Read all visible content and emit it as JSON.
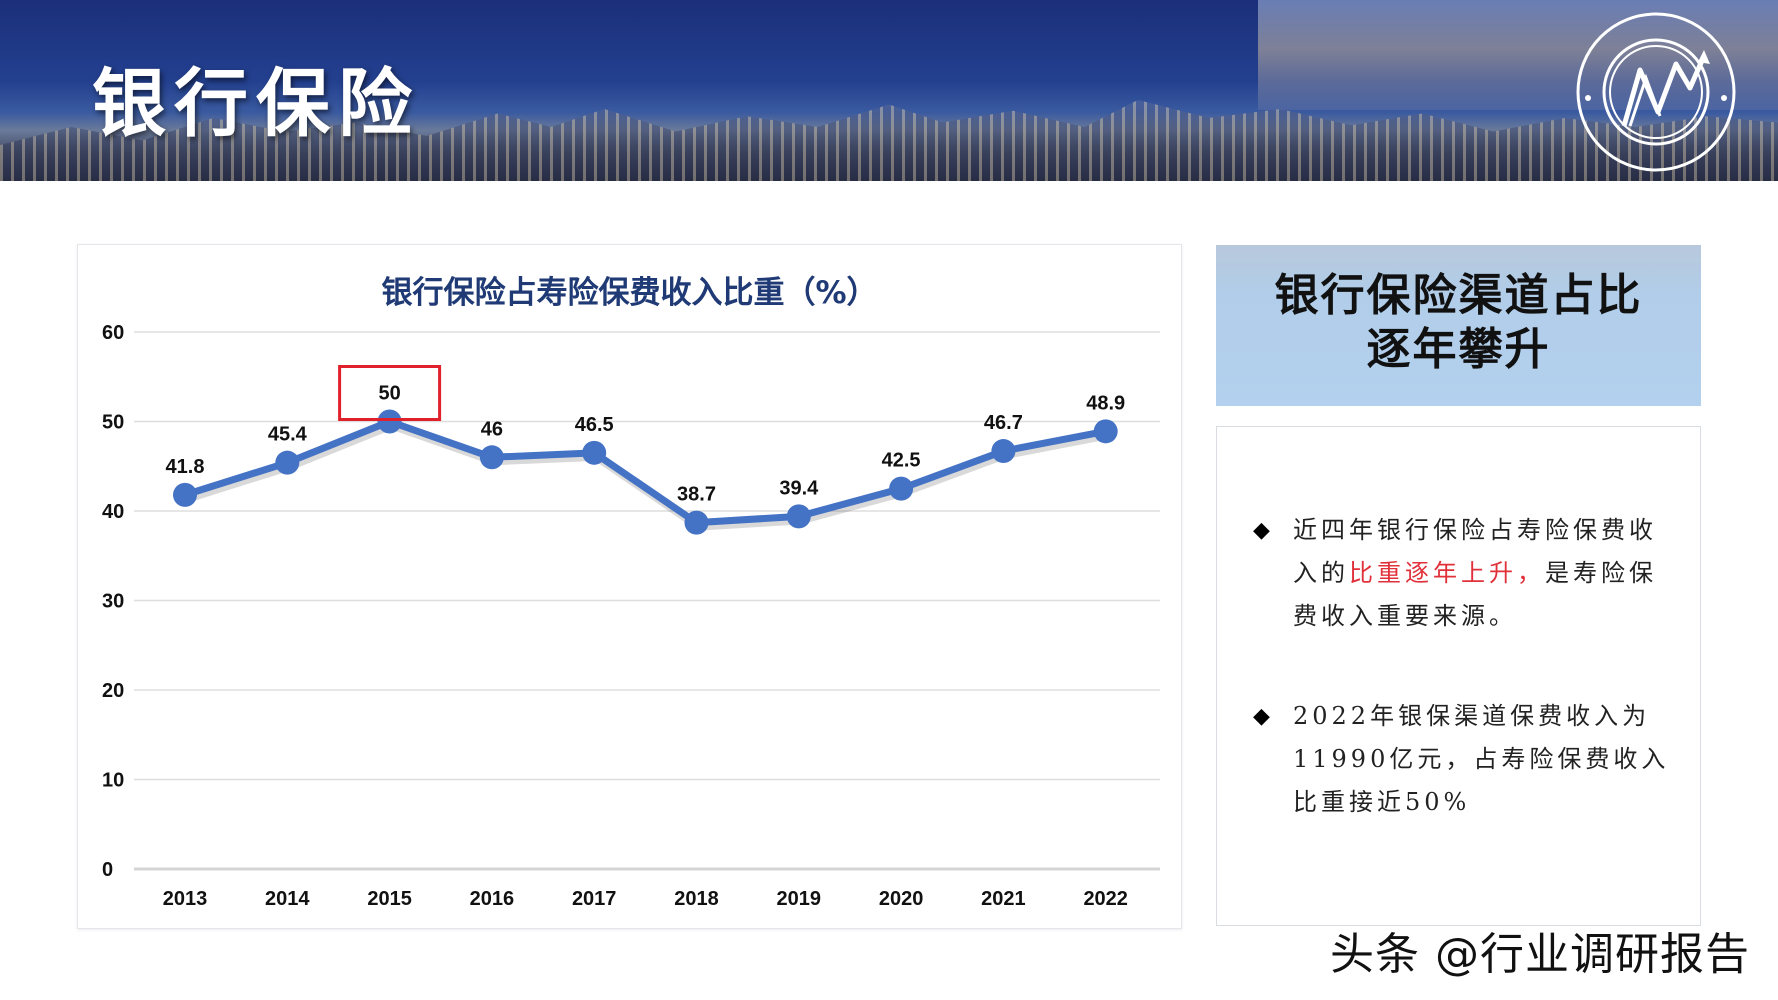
{
  "header": {
    "title": "银行保险",
    "logo_icon": "research-center-seal-logo"
  },
  "chart_panel": {
    "title": "银行保险占寿险保费收入比重（%）"
  },
  "side_panel": {
    "heading_line1": "银行保险渠道占比",
    "heading_line2": "逐年攀升",
    "bullets": [
      {
        "icon": "diamond-bullet",
        "text_before": "近四年银行保险占寿险保费收入的",
        "text_highlight": "比重逐年上升，",
        "text_after": "是寿险保费收入重要来源。"
      },
      {
        "icon": "diamond-bullet",
        "text_before": "2022年银保渠道保费收入为11990亿元，占寿险保费收入比重接近50%",
        "text_highlight": "",
        "text_after": ""
      }
    ]
  },
  "watermark": "头条 @行业调研报告",
  "colors": {
    "line": "#4472c4",
    "highlight_box": "#e0202a",
    "chart_title": "#1f3a75",
    "highlight_text": "#e0303a"
  },
  "chart_data": {
    "type": "line",
    "title": "银行保险占寿险保费收入比重（%）",
    "xlabel": "",
    "ylabel": "",
    "categories": [
      "2013",
      "2014",
      "2015",
      "2016",
      "2017",
      "2018",
      "2019",
      "2020",
      "2021",
      "2022"
    ],
    "series": [
      {
        "name": "银行保险占寿险保费收入比重",
        "values": [
          41.8,
          45.4,
          50,
          46,
          46.5,
          38.7,
          39.4,
          42.5,
          46.7,
          48.9
        ]
      }
    ],
    "data_labels": [
      "41.8",
      "45.4",
      "50",
      "46",
      "46.5",
      "38.7",
      "39.4",
      "42.5",
      "46.7",
      "48.9"
    ],
    "yticks": [
      0,
      10,
      20,
      30,
      40,
      50,
      60
    ],
    "ylim": [
      0,
      60
    ],
    "grid": true,
    "legend": "none",
    "annotations": [
      {
        "type": "highlight-box",
        "target": "2015",
        "value": "50"
      }
    ]
  }
}
